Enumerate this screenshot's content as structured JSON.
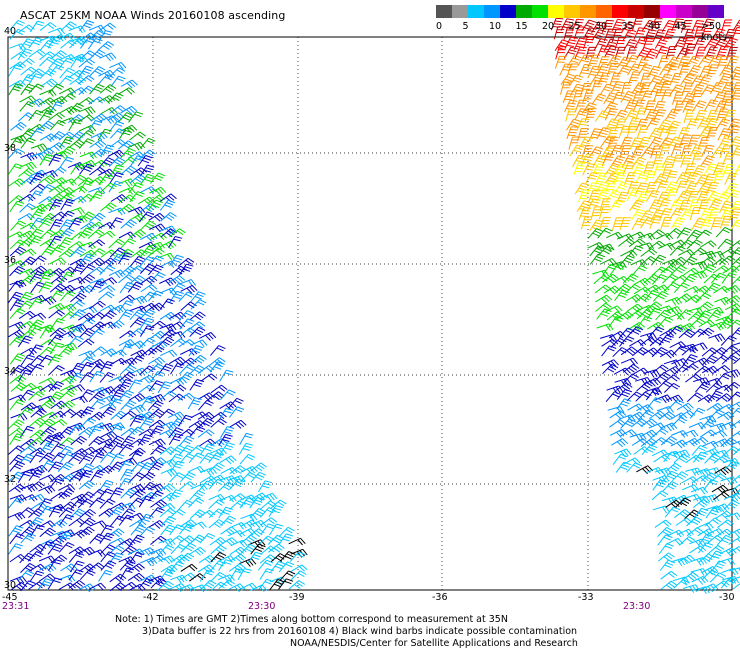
{
  "title": "ASCAT 25KM NOAA Winds 20160108 ascending",
  "scale": {
    "colors": [
      "#555555",
      "#999999",
      "#00c8ff",
      "#0096ff",
      "#0000c8",
      "#00aa00",
      "#00e100",
      "#ffff00",
      "#ffc800",
      "#ff9600",
      "#ff6400",
      "#ff0000",
      "#c80000",
      "#960000",
      "#ff00ff",
      "#c800c8",
      "#960096",
      "#6400c8"
    ],
    "labels": [
      "0",
      "5",
      "10",
      "15",
      "20",
      "25",
      "30",
      "35",
      "40",
      "45",
      ">50 knots"
    ]
  },
  "axes": {
    "lon_labels": [
      "-45",
      "-42",
      "-39",
      "-36",
      "-33",
      "-30"
    ],
    "lat_labels": [
      "40",
      "38",
      "36",
      "34",
      "32",
      "30"
    ],
    "time_labels": [
      "23:31",
      "23:30",
      "23:30"
    ]
  },
  "notes": [
    "Note: 1) Times are GMT 2)Times along bottom correspond to measurement at 35N",
    "3)Data buffer is 22 hrs from 20160108 4) Black wind barbs indicate possible contamination",
    "NOAA/NESDIS/Center for Satellite Applications and Research"
  ]
}
